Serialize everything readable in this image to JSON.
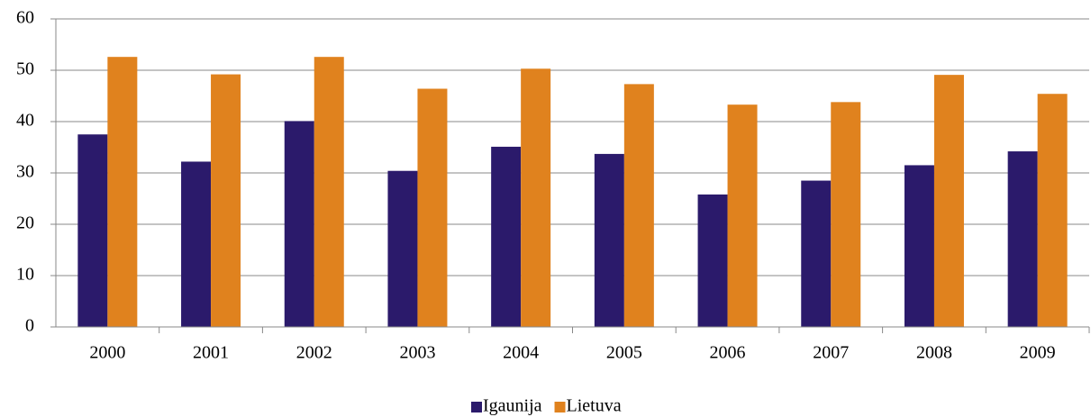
{
  "chart_data": {
    "type": "bar",
    "categories": [
      "2000",
      "2001",
      "2002",
      "2003",
      "2004",
      "2005",
      "2006",
      "2007",
      "2008",
      "2009"
    ],
    "series": [
      {
        "name": "Igaunija",
        "color": "#2b1a6b",
        "values": [
          37.5,
          32.2,
          40.1,
          30.4,
          35.1,
          33.7,
          25.8,
          28.5,
          31.5,
          34.2
        ]
      },
      {
        "name": "Lietuva",
        "color": "#e0821e",
        "values": [
          52.6,
          49.2,
          52.6,
          46.4,
          50.3,
          47.3,
          43.3,
          43.8,
          49.1,
          45.4
        ]
      }
    ],
    "ylim": [
      0,
      60
    ],
    "yticks": [
      0,
      10,
      20,
      30,
      40,
      50,
      60
    ],
    "grid": true,
    "legend": "bottom"
  }
}
